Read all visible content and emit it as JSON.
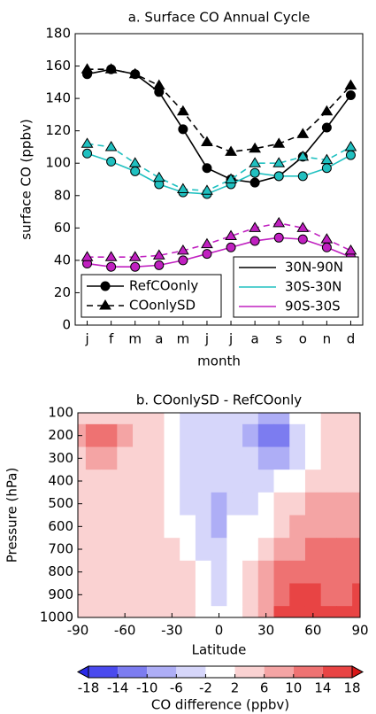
{
  "chart_data": [
    {
      "type": "line",
      "title": "a. Surface CO Annual Cycle",
      "x_label": "month",
      "y_label": "surface CO (ppbv)",
      "categories": [
        "j",
        "f",
        "m",
        "a",
        "m",
        "j",
        "j",
        "a",
        "s",
        "o",
        "n",
        "d"
      ],
      "ylim": [
        0,
        180
      ],
      "yticks": [
        0,
        20,
        40,
        60,
        80,
        100,
        120,
        140,
        160,
        180
      ],
      "style_legend": [
        {
          "label": "RefCOonly",
          "dashed": false,
          "marker": "circle"
        },
        {
          "label": "COonlySD",
          "dashed": true,
          "marker": "triangle"
        }
      ],
      "color_legend": [
        {
          "label": "30N-90N",
          "color": "#000000"
        },
        {
          "label": "30S-30N",
          "color": "#20c0c0"
        },
        {
          "label": "90S-30S",
          "color": "#c020c0"
        }
      ],
      "series": [
        {
          "style": 0,
          "region": 0,
          "values": [
            155,
            158,
            155,
            144,
            121,
            97,
            90,
            88,
            92,
            104,
            122,
            142
          ]
        },
        {
          "style": 1,
          "region": 0,
          "values": [
            158,
            158,
            155,
            148,
            132,
            113,
            107,
            109,
            112,
            118,
            132,
            148
          ]
        },
        {
          "style": 0,
          "region": 1,
          "values": [
            106,
            101,
            95,
            87,
            82,
            81,
            87,
            94,
            92,
            92,
            97,
            105
          ]
        },
        {
          "style": 1,
          "region": 1,
          "values": [
            112,
            110,
            100,
            91,
            84,
            83,
            90,
            100,
            100,
            104,
            102,
            110
          ]
        },
        {
          "style": 0,
          "region": 2,
          "values": [
            38,
            36,
            36,
            37,
            40,
            44,
            48,
            52,
            54,
            53,
            48,
            42
          ]
        },
        {
          "style": 1,
          "region": 2,
          "values": [
            42,
            42,
            42,
            43,
            46,
            50,
            55,
            60,
            63,
            60,
            53,
            46
          ]
        }
      ]
    },
    {
      "type": "contour",
      "title": "b. COonlySD - RefCOonly",
      "x_label": "Latitude",
      "y_label": "Pressure (hPa)",
      "xlim": [
        -90,
        90
      ],
      "xticks": [
        -90,
        -60,
        -30,
        0,
        30,
        60,
        90
      ],
      "ylim": [
        1000,
        100
      ],
      "yticks": [
        100,
        200,
        300,
        400,
        500,
        600,
        700,
        800,
        900,
        1000
      ],
      "x": [
        -90,
        -80,
        -70,
        -60,
        -50,
        -40,
        -30,
        -20,
        -10,
        0,
        10,
        20,
        30,
        40,
        50,
        60,
        70,
        80,
        90
      ],
      "y": [
        100,
        200,
        300,
        400,
        500,
        600,
        700,
        800,
        900,
        1000
      ],
      "z": [
        [
          4,
          5,
          5,
          4,
          3,
          2,
          0,
          -3,
          -4,
          -4,
          -3,
          -6,
          -10,
          -8,
          -2,
          1,
          3,
          4,
          4
        ],
        [
          7,
          12,
          12,
          8,
          5,
          3,
          0,
          -3,
          -4,
          -4,
          -5,
          -8,
          -12,
          -11,
          -4,
          0,
          3,
          4,
          4
        ],
        [
          5,
          6,
          6,
          5,
          4,
          3,
          0,
          -3,
          -4,
          -5,
          -5,
          -6,
          -9,
          -8,
          -3,
          0,
          3,
          4,
          4
        ],
        [
          4,
          4,
          4,
          4,
          4,
          3,
          -1,
          -3,
          -4,
          -6,
          -4,
          -4,
          -5,
          -2,
          1,
          3,
          4,
          5,
          5
        ],
        [
          4,
          4,
          4,
          4,
          4,
          3,
          -1,
          -3,
          -4,
          -7,
          -3,
          -3,
          -2,
          2,
          4,
          6,
          6,
          7,
          7
        ],
        [
          4,
          4,
          4,
          4,
          4,
          3,
          1,
          -2,
          -4,
          -7,
          -2,
          -2,
          1,
          5,
          7,
          8,
          8,
          9,
          9
        ],
        [
          4,
          4,
          4,
          4,
          4,
          4,
          3,
          1,
          -3,
          -6,
          -2,
          0,
          3,
          7,
          9,
          10,
          10,
          11,
          11
        ],
        [
          4,
          4,
          4,
          4,
          4,
          4,
          4,
          2,
          -2,
          -5,
          -1,
          2,
          6,
          10,
          12,
          12,
          11,
          12,
          13
        ],
        [
          4,
          4,
          4,
          4,
          4,
          4,
          4,
          3,
          0,
          -4,
          0,
          3,
          8,
          13,
          15,
          15,
          13,
          13,
          14
        ],
        [
          4,
          4,
          4,
          4,
          4,
          4,
          4,
          3,
          1,
          -2,
          1,
          4,
          9,
          15,
          16,
          16,
          14,
          14,
          15
        ]
      ],
      "levels": [
        -18,
        -14,
        -10,
        -6,
        -2,
        2,
        6,
        10,
        14,
        18
      ],
      "colors": [
        "#2a2ae8",
        "#4a4aee",
        "#7c7cf0",
        "#aeaef6",
        "#d6d6fa",
        "#ffffff",
        "#fad2d2",
        "#f4a4a4",
        "#ee7272",
        "#e84444",
        "#d81818"
      ],
      "colorbar_label": "CO difference (ppbv)"
    }
  ]
}
